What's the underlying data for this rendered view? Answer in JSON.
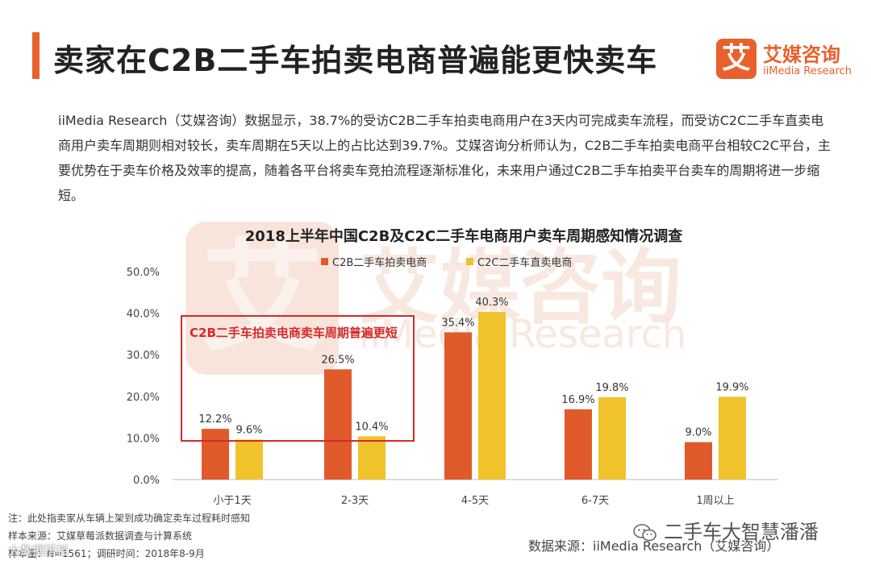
{
  "page": {
    "title": "卖家在C2B二手车拍卖电商普遍能更快卖车",
    "paragraph": "iiMedia Research（艾媒咨询）数据显示，38.7%的受访C2B二手车拍卖电商用户在3天内可完成卖车流程，而受访C2C二手车直卖电商用户卖车周期则相对较长，卖车周期在5天以上的占比达到39.7%。艾媒咨询分析师认为，C2B二手车拍卖电商平台相较C2C平台，主要优势在于卖车价格及效率的提高，随着各平台将卖车竞拍流程逐渐标准化，未来用户通过C2B二手车拍卖平台卖车的周期将进一步缩短。"
  },
  "logo": {
    "mark": "艾",
    "name_cn": "艾媒咨询",
    "name_en": "iiMedia Research"
  },
  "colors": {
    "accent": "#e8612c",
    "series_c2b": "#e05a2b",
    "series_c2c": "#f0c22b",
    "highlight": "#d42a2a"
  },
  "chart_data": {
    "type": "bar",
    "title": "2018上半年中国C2B及C2C二手车电商用户卖车周期感知情况调查",
    "categories": [
      "小于1天",
      "2-3天",
      "4-5天",
      "6-7天",
      "1周以上"
    ],
    "series": [
      {
        "name": "C2B二手车拍卖电商",
        "values": [
          12.2,
          26.5,
          35.4,
          16.9,
          9.0
        ],
        "labels": [
          "12.2%",
          "26.5%",
          "35.4%",
          "16.9%",
          "9.0%"
        ]
      },
      {
        "name": "C2C二手车直卖电商",
        "values": [
          9.6,
          10.4,
          40.3,
          19.8,
          19.9
        ],
        "labels": [
          "9.6%",
          "10.4%",
          "40.3%",
          "19.8%",
          "19.9%"
        ]
      }
    ],
    "yticks": [
      "0.0%",
      "10.0%",
      "20.0%",
      "30.0%",
      "40.0%",
      "50.0%"
    ],
    "ylim": [
      0,
      50
    ],
    "grid": false,
    "legend_position": "top-center",
    "annotation": "C2B二手车拍卖电商卖车周期普遍更短"
  },
  "notes": {
    "note": "注：此处指卖家从车辆上架到成功确定卖车过程耗时感知",
    "sample_source": "样本来源：艾媒草莓派数据调查与计算系统",
    "sample_size": "样本量：N=1561；调研时间：2018年8-9月"
  },
  "footer": {
    "wechat": "二手车大智慧潘潘",
    "source": "数据来源：iiMedia Research（艾媒咨询）",
    "corner_mark": "大数据搭档"
  },
  "watermark": {
    "mark": "艾",
    "cn": "艾媒咨询",
    "en": "iiMedia Research"
  }
}
